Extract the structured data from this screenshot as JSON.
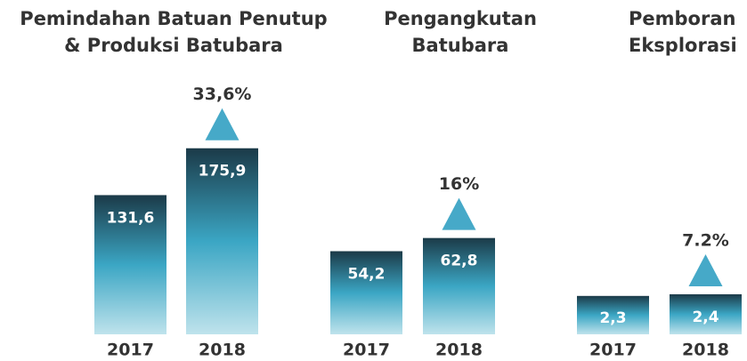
{
  "chart_data": [
    {
      "type": "bar",
      "title": [
        "Pemindahan Batuan Penutup",
        "& Produksi Batubara"
      ],
      "categories": [
        "2017",
        "2018"
      ],
      "values": [
        131.6,
        175.9
      ],
      "value_labels": [
        "131,6",
        "175,9"
      ],
      "annotation": "33,6%",
      "ylim": [
        0,
        232
      ]
    },
    {
      "type": "bar",
      "title": [
        "Pengangkutan",
        "Batubara"
      ],
      "categories": [
        "2017",
        "2018"
      ],
      "values": [
        54.2,
        62.8
      ],
      "value_labels": [
        "54,2",
        "62,8"
      ],
      "annotation": "16%",
      "ylim": [
        0,
        160
      ]
    },
    {
      "type": "bar",
      "title": [
        "Pemboran",
        "Eksplorasi"
      ],
      "categories": [
        "2017",
        "2018"
      ],
      "values": [
        2.3,
        2.4
      ],
      "value_labels": [
        "2,3",
        "2,4"
      ],
      "annotation": "7.2%",
      "ylim": [
        0,
        14.7
      ]
    }
  ]
}
